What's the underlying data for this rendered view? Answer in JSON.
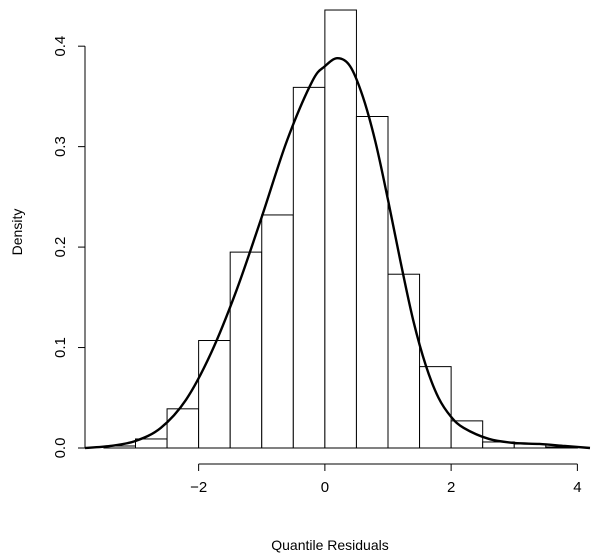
{
  "chart_data": {
    "type": "histogram",
    "xlabel": "Quantile Residuals",
    "ylabel": "Density",
    "title": "",
    "xlim": [
      -3.8,
      4.2
    ],
    "ylim": [
      0,
      0.44
    ],
    "x_ticks": [
      -2,
      0,
      2,
      4
    ],
    "x_tick_labels": [
      "−2",
      "0",
      "2",
      "4"
    ],
    "y_ticks": [
      0.0,
      0.1,
      0.2,
      0.3,
      0.4
    ],
    "y_tick_labels": [
      "0.0",
      "0.1",
      "0.2",
      "0.3",
      "0.4"
    ],
    "bins": [
      {
        "x0": -3.5,
        "x1": -3.0,
        "density": 0.002
      },
      {
        "x0": -3.0,
        "x1": -2.5,
        "density": 0.009
      },
      {
        "x0": -2.5,
        "x1": -2.0,
        "density": 0.039
      },
      {
        "x0": -2.0,
        "x1": -1.5,
        "density": 0.107
      },
      {
        "x0": -1.5,
        "x1": -1.0,
        "density": 0.195
      },
      {
        "x0": -1.0,
        "x1": -0.5,
        "density": 0.232
      },
      {
        "x0": -0.5,
        "x1": 0.0,
        "density": 0.359
      },
      {
        "x0": 0.0,
        "x1": 0.5,
        "density": 0.436
      },
      {
        "x0": 0.5,
        "x1": 1.0,
        "density": 0.33
      },
      {
        "x0": 1.0,
        "x1": 1.5,
        "density": 0.173
      },
      {
        "x0": 1.5,
        "x1": 2.0,
        "density": 0.081
      },
      {
        "x0": 2.0,
        "x1": 2.5,
        "density": 0.027
      },
      {
        "x0": 2.5,
        "x1": 3.0,
        "density": 0.006
      },
      {
        "x0": 3.0,
        "x1": 3.5,
        "density": 0.004
      },
      {
        "x0": 3.5,
        "x1": 4.0,
        "density": 0.001
      }
    ],
    "density_curve": {
      "x": [
        -3.8,
        -3.4,
        -3.0,
        -2.6,
        -2.2,
        -1.8,
        -1.4,
        -1.0,
        -0.6,
        -0.2,
        0.0,
        0.2,
        0.4,
        0.6,
        0.8,
        1.0,
        1.2,
        1.4,
        1.6,
        1.8,
        2.0,
        2.2,
        2.6,
        3.0,
        3.4,
        3.8,
        4.2
      ],
      "y": [
        0.0,
        0.002,
        0.007,
        0.02,
        0.048,
        0.095,
        0.157,
        0.23,
        0.306,
        0.365,
        0.38,
        0.388,
        0.38,
        0.35,
        0.305,
        0.247,
        0.185,
        0.127,
        0.082,
        0.05,
        0.031,
        0.02,
        0.009,
        0.005,
        0.004,
        0.002,
        0.0
      ]
    },
    "grid": false,
    "legend": "none",
    "colors": {
      "bar_fill": "#ffffff",
      "bar_stroke": "#000000",
      "curve": "#000000",
      "axis": "#000000"
    }
  }
}
